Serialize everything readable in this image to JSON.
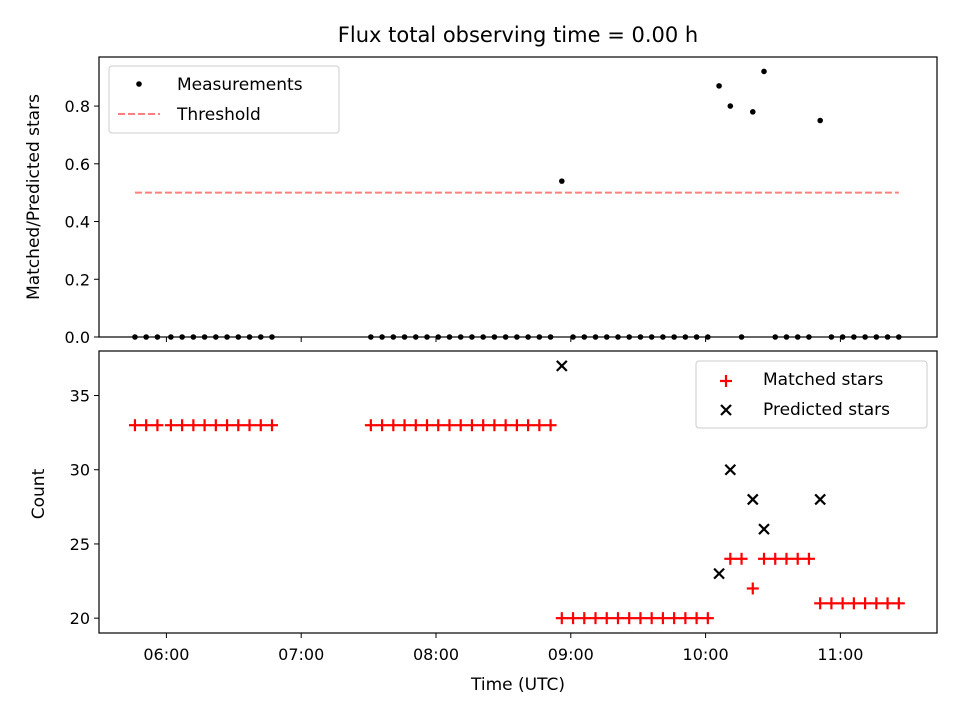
{
  "chart_data": {
    "title": "Flux total observing time = 0.00 h",
    "xlabel": "Time (UTC)",
    "xlim": [
      "05:30",
      "11:43"
    ],
    "xticks": [
      "06:00",
      "07:00",
      "08:00",
      "09:00",
      "10:00",
      "11:00"
    ],
    "panels": [
      {
        "type": "scatter",
        "ylabel": "Matched/Predicted stars",
        "ylim": [
          0.0,
          0.97
        ],
        "yticks": [
          "0.0",
          "0.2",
          "0.4",
          "0.6",
          "0.8"
        ],
        "legend_position": "top-left",
        "grid": false,
        "series": [
          {
            "name": "Measurements",
            "kind": "dot",
            "color": "#000000",
            "points": [
              [
                "05:46",
                0
              ],
              [
                "05:51",
                0
              ],
              [
                "05:56",
                0
              ],
              [
                "06:02",
                0
              ],
              [
                "06:07",
                0
              ],
              [
                "06:12",
                0
              ],
              [
                "06:17",
                0
              ],
              [
                "06:22",
                0
              ],
              [
                "06:27",
                0
              ],
              [
                "06:32",
                0
              ],
              [
                "06:37",
                0
              ],
              [
                "06:42",
                0
              ],
              [
                "06:47",
                0
              ],
              [
                "07:31",
                0
              ],
              [
                "07:36",
                0
              ],
              [
                "07:41",
                0
              ],
              [
                "07:46",
                0
              ],
              [
                "07:51",
                0
              ],
              [
                "07:56",
                0
              ],
              [
                "08:01",
                0
              ],
              [
                "08:06",
                0
              ],
              [
                "08:11",
                0
              ],
              [
                "08:16",
                0
              ],
              [
                "08:21",
                0
              ],
              [
                "08:26",
                0
              ],
              [
                "08:31",
                0
              ],
              [
                "08:36",
                0
              ],
              [
                "08:41",
                0
              ],
              [
                "08:46",
                0
              ],
              [
                "08:51",
                0
              ],
              [
                "08:56",
                0.54
              ],
              [
                "09:01",
                0
              ],
              [
                "09:06",
                0
              ],
              [
                "09:11",
                0
              ],
              [
                "09:16",
                0
              ],
              [
                "09:21",
                0
              ],
              [
                "09:26",
                0
              ],
              [
                "09:31",
                0
              ],
              [
                "09:36",
                0
              ],
              [
                "09:41",
                0
              ],
              [
                "09:46",
                0
              ],
              [
                "09:51",
                0
              ],
              [
                "09:56",
                0
              ],
              [
                "10:01",
                0
              ],
              [
                "10:06",
                0.87
              ],
              [
                "10:11",
                0.8
              ],
              [
                "10:16",
                0
              ],
              [
                "10:21",
                0.78
              ],
              [
                "10:26",
                0.92
              ],
              [
                "10:31",
                0
              ],
              [
                "10:36",
                0
              ],
              [
                "10:41",
                0
              ],
              [
                "10:46",
                0
              ],
              [
                "10:51",
                0.75
              ],
              [
                "10:56",
                0
              ],
              [
                "11:01",
                0
              ],
              [
                "11:06",
                0
              ],
              [
                "11:11",
                0
              ],
              [
                "11:16",
                0
              ],
              [
                "11:21",
                0
              ],
              [
                "11:26",
                0
              ]
            ]
          },
          {
            "name": "Threshold",
            "kind": "dashed-line",
            "color": "#ff7f7f",
            "points": [
              [
                "05:46",
                0.5
              ],
              [
                "11:26",
                0.5
              ]
            ]
          }
        ]
      },
      {
        "type": "scatter",
        "ylabel": "Count",
        "ylim": [
          19.0,
          38.0
        ],
        "yticks": [
          "20",
          "25",
          "30",
          "35"
        ],
        "legend_position": "top-right",
        "grid": false,
        "series": [
          {
            "name": "Matched stars",
            "kind": "plus",
            "color": "#ff0000",
            "points": [
              [
                "05:46",
                33
              ],
              [
                "05:51",
                33
              ],
              [
                "05:56",
                33
              ],
              [
                "06:02",
                33
              ],
              [
                "06:07",
                33
              ],
              [
                "06:12",
                33
              ],
              [
                "06:17",
                33
              ],
              [
                "06:22",
                33
              ],
              [
                "06:27",
                33
              ],
              [
                "06:32",
                33
              ],
              [
                "06:37",
                33
              ],
              [
                "06:42",
                33
              ],
              [
                "06:47",
                33
              ],
              [
                "07:31",
                33
              ],
              [
                "07:36",
                33
              ],
              [
                "07:41",
                33
              ],
              [
                "07:46",
                33
              ],
              [
                "07:51",
                33
              ],
              [
                "07:56",
                33
              ],
              [
                "08:01",
                33
              ],
              [
                "08:06",
                33
              ],
              [
                "08:11",
                33
              ],
              [
                "08:16",
                33
              ],
              [
                "08:21",
                33
              ],
              [
                "08:26",
                33
              ],
              [
                "08:31",
                33
              ],
              [
                "08:36",
                33
              ],
              [
                "08:41",
                33
              ],
              [
                "08:46",
                33
              ],
              [
                "08:51",
                33
              ],
              [
                "08:56",
                20
              ],
              [
                "09:01",
                20
              ],
              [
                "09:06",
                20
              ],
              [
                "09:11",
                20
              ],
              [
                "09:16",
                20
              ],
              [
                "09:21",
                20
              ],
              [
                "09:26",
                20
              ],
              [
                "09:31",
                20
              ],
              [
                "09:36",
                20
              ],
              [
                "09:41",
                20
              ],
              [
                "09:46",
                20
              ],
              [
                "09:51",
                20
              ],
              [
                "09:56",
                20
              ],
              [
                "10:01",
                20
              ],
              [
                "10:11",
                24
              ],
              [
                "10:16",
                24
              ],
              [
                "10:21",
                22
              ],
              [
                "10:26",
                24
              ],
              [
                "10:31",
                24
              ],
              [
                "10:36",
                24
              ],
              [
                "10:41",
                24
              ],
              [
                "10:46",
                24
              ],
              [
                "10:51",
                21
              ],
              [
                "10:56",
                21
              ],
              [
                "11:01",
                21
              ],
              [
                "11:06",
                21
              ],
              [
                "11:11",
                21
              ],
              [
                "11:16",
                21
              ],
              [
                "11:21",
                21
              ],
              [
                "11:26",
                21
              ]
            ]
          },
          {
            "name": "Predicted stars",
            "kind": "x",
            "color": "#000000",
            "points": [
              [
                "08:56",
                37
              ],
              [
                "10:06",
                23
              ],
              [
                "10:11",
                30
              ],
              [
                "10:21",
                28
              ],
              [
                "10:26",
                26
              ],
              [
                "10:51",
                28
              ]
            ]
          }
        ]
      }
    ]
  }
}
